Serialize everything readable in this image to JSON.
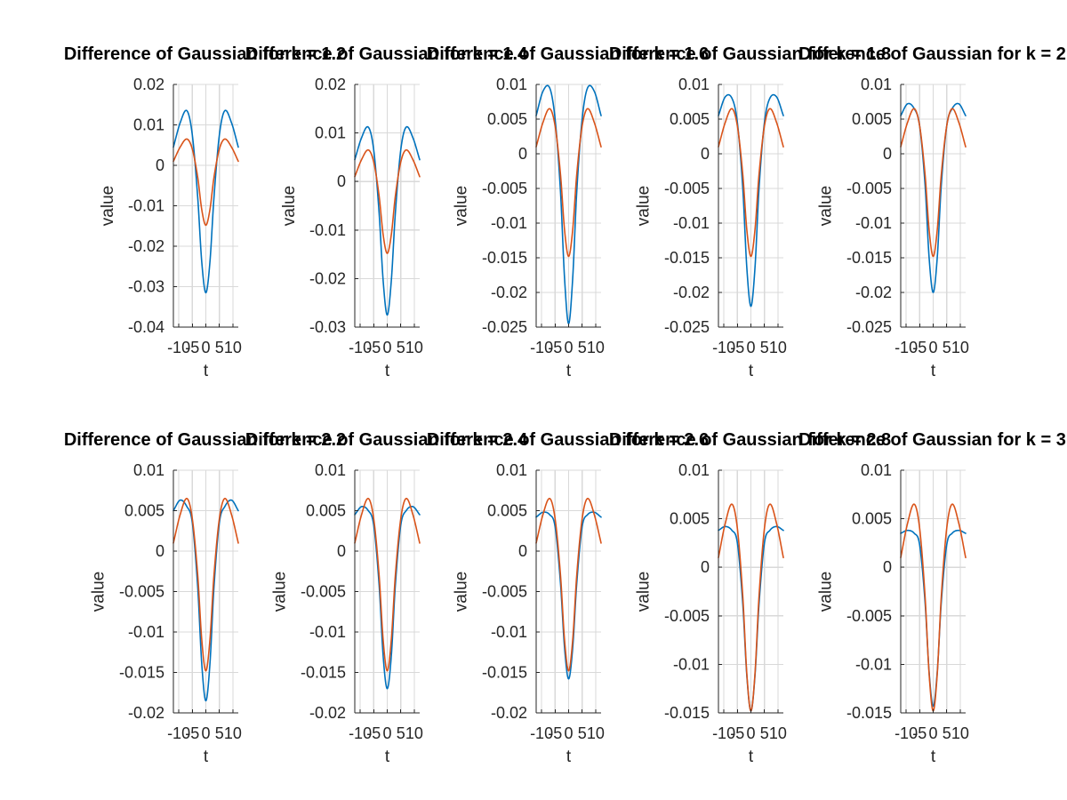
{
  "colors": {
    "dog": "#0072bd",
    "log": "#d95319"
  },
  "chart_data": [
    {
      "type": "line",
      "title": "Difference of Gaussian for k = 1.2",
      "xlabel": "t",
      "ylabel": "value",
      "k": 1.2,
      "xlim": [
        -12,
        12
      ],
      "ylim": [
        -0.04,
        0.02
      ],
      "xticks": [
        -10,
        -5,
        0,
        5,
        10
      ],
      "xtick_labels": [
        "-10",
        "-5",
        "0",
        "5",
        "10"
      ],
      "yticks": [
        -0.04,
        -0.03,
        -0.02,
        -0.01,
        0,
        0.01,
        0.02
      ],
      "ytick_labels": [
        "-0.04",
        "-0.03",
        "-0.02",
        "-0.01",
        "0",
        "0.01",
        "0.02"
      ],
      "grid": true,
      "series": [
        {
          "color": "#0072bd",
          "x": [
            -12,
            -9.5,
            -7,
            -5,
            -3,
            -1.5,
            0,
            1.5,
            3,
            5,
            7,
            9.5,
            12
          ],
          "y": [
            0.0045,
            0.0105,
            0.0135,
            0.0075,
            -0.008,
            -0.024,
            -0.0315,
            -0.024,
            -0.008,
            0.0075,
            0.0135,
            0.0105,
            0.0045
          ]
        },
        {
          "color": "#d95319",
          "x": [
            -12,
            -9.5,
            -7,
            -5,
            -3,
            -1.5,
            0,
            1.5,
            3,
            5,
            7,
            9.5,
            12
          ],
          "y": [
            0.001,
            0.0045,
            0.0065,
            0.004,
            -0.003,
            -0.011,
            -0.0148,
            -0.011,
            -0.003,
            0.004,
            0.0065,
            0.0045,
            0.001
          ]
        }
      ]
    },
    {
      "type": "line",
      "title": "Difference of Gaussian for k = 1.4",
      "xlabel": "t",
      "ylabel": "value",
      "k": 1.4,
      "xlim": [
        -12,
        12
      ],
      "ylim": [
        -0.03,
        0.02
      ],
      "xticks": [
        -10,
        -5,
        0,
        5,
        10
      ],
      "xtick_labels": [
        "-10",
        "-5",
        "0",
        "5",
        "10"
      ],
      "yticks": [
        -0.03,
        -0.02,
        -0.01,
        0,
        0.01,
        0.02
      ],
      "ytick_labels": [
        "-0.03",
        "-0.02",
        "-0.01",
        "0",
        "0.01",
        "0.02"
      ],
      "grid": true,
      "series": [
        {
          "color": "#0072bd",
          "x": [
            -12,
            -9.5,
            -7,
            -5,
            -3,
            -1.5,
            0,
            1.5,
            3,
            5,
            7,
            9.5,
            12
          ],
          "y": [
            0.0045,
            0.009,
            0.0112,
            0.0065,
            -0.0065,
            -0.0205,
            -0.0275,
            -0.0205,
            -0.0065,
            0.0065,
            0.0112,
            0.009,
            0.0045
          ]
        },
        {
          "color": "#d95319",
          "x": [
            -12,
            -9.5,
            -7,
            -5,
            -3,
            -1.5,
            0,
            1.5,
            3,
            5,
            7,
            9.5,
            12
          ],
          "y": [
            0.001,
            0.0045,
            0.0065,
            0.004,
            -0.003,
            -0.011,
            -0.0148,
            -0.011,
            -0.003,
            0.004,
            0.0065,
            0.0045,
            0.001
          ]
        }
      ]
    },
    {
      "type": "line",
      "title": "Difference of Gaussian for k = 1.6",
      "xlabel": "t",
      "ylabel": "value",
      "k": 1.6,
      "xlim": [
        -12,
        12
      ],
      "ylim": [
        -0.025,
        0.01
      ],
      "xticks": [
        -10,
        -5,
        0,
        5,
        10
      ],
      "xtick_labels": [
        "-10",
        "-5",
        "0",
        "5",
        "10"
      ],
      "yticks": [
        -0.025,
        -0.02,
        -0.015,
        -0.01,
        -0.005,
        0,
        0.005,
        0.01
      ],
      "ytick_labels": [
        "-0.025",
        "-0.02",
        "-0.015",
        "-0.01",
        "-0.005",
        "0",
        "0.005",
        "0.01"
      ],
      "grid": true,
      "series": [
        {
          "color": "#0072bd",
          "x": [
            -12,
            -9.5,
            -7,
            -5,
            -3,
            -1.5,
            0,
            1.5,
            3,
            5,
            7,
            9.5,
            12
          ],
          "y": [
            0.0055,
            0.009,
            0.0095,
            0.005,
            -0.0055,
            -0.018,
            -0.0245,
            -0.018,
            -0.0055,
            0.005,
            0.0095,
            0.009,
            0.0055
          ]
        },
        {
          "color": "#d95319",
          "x": [
            -12,
            -9.5,
            -7,
            -5,
            -3,
            -1.5,
            0,
            1.5,
            3,
            5,
            7,
            9.5,
            12
          ],
          "y": [
            0.001,
            0.0045,
            0.0065,
            0.004,
            -0.003,
            -0.011,
            -0.0148,
            -0.011,
            -0.003,
            0.004,
            0.0065,
            0.0045,
            0.001
          ]
        }
      ]
    },
    {
      "type": "line",
      "title": "Difference of Gaussian for k = 1.8",
      "xlabel": "t",
      "ylabel": "value",
      "k": 1.8,
      "xlim": [
        -12,
        12
      ],
      "ylim": [
        -0.025,
        0.01
      ],
      "xticks": [
        -10,
        -5,
        0,
        5,
        10
      ],
      "xtick_labels": [
        "-10",
        "-5",
        "0",
        "5",
        "10"
      ],
      "yticks": [
        -0.025,
        -0.02,
        -0.015,
        -0.01,
        -0.005,
        0,
        0.005,
        0.01
      ],
      "ytick_labels": [
        "-0.025",
        "-0.02",
        "-0.015",
        "-0.01",
        "-0.005",
        "0",
        "0.005",
        "0.01"
      ],
      "grid": true,
      "series": [
        {
          "color": "#0072bd",
          "x": [
            -12,
            -9.5,
            -7,
            -5,
            -3,
            -1.5,
            0,
            1.5,
            3,
            5,
            7,
            9.5,
            12
          ],
          "y": [
            0.0055,
            0.0082,
            0.008,
            0.0045,
            -0.005,
            -0.0165,
            -0.022,
            -0.0165,
            -0.005,
            0.0045,
            0.008,
            0.0082,
            0.0055
          ]
        },
        {
          "color": "#d95319",
          "x": [
            -12,
            -9.5,
            -7,
            -5,
            -3,
            -1.5,
            0,
            1.5,
            3,
            5,
            7,
            9.5,
            12
          ],
          "y": [
            0.001,
            0.0045,
            0.0065,
            0.004,
            -0.003,
            -0.011,
            -0.0148,
            -0.011,
            -0.003,
            0.004,
            0.0065,
            0.0045,
            0.001
          ]
        }
      ]
    },
    {
      "type": "line",
      "title": "Difference of Gaussian for k = 2",
      "xlabel": "t",
      "ylabel": "value",
      "k": 2,
      "xlim": [
        -12,
        12
      ],
      "ylim": [
        -0.025,
        0.01
      ],
      "xticks": [
        -10,
        -5,
        0,
        5,
        10
      ],
      "xtick_labels": [
        "-10",
        "-5",
        "0",
        "5",
        "10"
      ],
      "yticks": [
        -0.025,
        -0.02,
        -0.015,
        -0.01,
        -0.005,
        0,
        0.005,
        0.01
      ],
      "ytick_labels": [
        "-0.025",
        "-0.02",
        "-0.015",
        "-0.01",
        "-0.005",
        "0",
        "0.005",
        "0.01"
      ],
      "grid": true,
      "series": [
        {
          "color": "#0072bd",
          "x": [
            -12,
            -9.5,
            -7,
            -5,
            -3,
            -1.5,
            0,
            1.5,
            3,
            5,
            7,
            9.5,
            12
          ],
          "y": [
            0.0055,
            0.0072,
            0.0065,
            0.004,
            -0.0045,
            -0.015,
            -0.02,
            -0.015,
            -0.0045,
            0.004,
            0.0065,
            0.0072,
            0.0055
          ]
        },
        {
          "color": "#d95319",
          "x": [
            -12,
            -9.5,
            -7,
            -5,
            -3,
            -1.5,
            0,
            1.5,
            3,
            5,
            7,
            9.5,
            12
          ],
          "y": [
            0.001,
            0.0045,
            0.0065,
            0.004,
            -0.003,
            -0.011,
            -0.0148,
            -0.011,
            -0.003,
            0.004,
            0.0065,
            0.0045,
            0.001
          ]
        }
      ]
    },
    {
      "type": "line",
      "title": "Difference of Gaussian for k = 2.2",
      "xlabel": "t",
      "ylabel": "value",
      "k": 2.2,
      "xlim": [
        -12,
        12
      ],
      "ylim": [
        -0.02,
        0.01
      ],
      "xticks": [
        -10,
        -5,
        0,
        5,
        10
      ],
      "xtick_labels": [
        "-10",
        "-5",
        "0",
        "5",
        "10"
      ],
      "yticks": [
        -0.02,
        -0.015,
        -0.01,
        -0.005,
        0,
        0.005,
        0.01
      ],
      "ytick_labels": [
        "-0.02",
        "-0.015",
        "-0.01",
        "-0.005",
        "0",
        "0.005",
        "0.01"
      ],
      "grid": true,
      "series": [
        {
          "color": "#0072bd",
          "x": [
            -12,
            -9.5,
            -7,
            -5,
            -3,
            -1.5,
            0,
            1.5,
            3,
            5,
            7,
            9.5,
            12
          ],
          "y": [
            0.005,
            0.0063,
            0.0055,
            0.0035,
            -0.0045,
            -0.014,
            -0.0185,
            -0.014,
            -0.0045,
            0.0035,
            0.0055,
            0.0063,
            0.005
          ]
        },
        {
          "color": "#d95319",
          "x": [
            -12,
            -9.5,
            -7,
            -5,
            -3,
            -1.5,
            0,
            1.5,
            3,
            5,
            7,
            9.5,
            12
          ],
          "y": [
            0.001,
            0.0045,
            0.0065,
            0.004,
            -0.003,
            -0.011,
            -0.0148,
            -0.011,
            -0.003,
            0.004,
            0.0065,
            0.0045,
            0.001
          ]
        }
      ]
    },
    {
      "type": "line",
      "title": "Difference of Gaussian for k = 2.4",
      "xlabel": "t",
      "ylabel": "value",
      "k": 2.4,
      "xlim": [
        -12,
        12
      ],
      "ylim": [
        -0.02,
        0.01
      ],
      "xticks": [
        -10,
        -5,
        0,
        5,
        10
      ],
      "xtick_labels": [
        "-10",
        "-5",
        "0",
        "5",
        "10"
      ],
      "yticks": [
        -0.02,
        -0.015,
        -0.01,
        -0.005,
        0,
        0.005,
        0.01
      ],
      "ytick_labels": [
        "-0.02",
        "-0.015",
        "-0.01",
        "-0.005",
        "0",
        "0.005",
        "0.01"
      ],
      "grid": true,
      "series": [
        {
          "color": "#0072bd",
          "x": [
            -12,
            -9.5,
            -7,
            -5,
            -3,
            -1.5,
            0,
            1.5,
            3,
            5,
            7,
            9.5,
            12
          ],
          "y": [
            0.0045,
            0.0055,
            0.005,
            0.0032,
            -0.0042,
            -0.013,
            -0.017,
            -0.013,
            -0.0042,
            0.0032,
            0.005,
            0.0055,
            0.0045
          ]
        },
        {
          "color": "#d95319",
          "x": [
            -12,
            -9.5,
            -7,
            -5,
            -3,
            -1.5,
            0,
            1.5,
            3,
            5,
            7,
            9.5,
            12
          ],
          "y": [
            0.001,
            0.0045,
            0.0065,
            0.004,
            -0.003,
            -0.011,
            -0.0148,
            -0.011,
            -0.003,
            0.004,
            0.0065,
            0.0045,
            0.001
          ]
        }
      ]
    },
    {
      "type": "line",
      "title": "Difference of Gaussian for k = 2.6",
      "xlabel": "t",
      "ylabel": "value",
      "k": 2.6,
      "xlim": [
        -12,
        12
      ],
      "ylim": [
        -0.02,
        0.01
      ],
      "xticks": [
        -10,
        -5,
        0,
        5,
        10
      ],
      "xtick_labels": [
        "-10",
        "-5",
        "0",
        "5",
        "10"
      ],
      "yticks": [
        -0.02,
        -0.015,
        -0.01,
        -0.005,
        0,
        0.005,
        0.01
      ],
      "ytick_labels": [
        "-0.02",
        "-0.015",
        "-0.01",
        "-0.005",
        "0",
        "0.005",
        "0.01"
      ],
      "grid": true,
      "series": [
        {
          "color": "#0072bd",
          "x": [
            -12,
            -9.5,
            -7,
            -5,
            -3,
            -1.5,
            0,
            1.5,
            3,
            5,
            7,
            9.5,
            12
          ],
          "y": [
            0.0042,
            0.0048,
            0.0045,
            0.003,
            -0.004,
            -0.012,
            -0.0158,
            -0.012,
            -0.004,
            0.003,
            0.0045,
            0.0048,
            0.0042
          ]
        },
        {
          "color": "#d95319",
          "x": [
            -12,
            -9.5,
            -7,
            -5,
            -3,
            -1.5,
            0,
            1.5,
            3,
            5,
            7,
            9.5,
            12
          ],
          "y": [
            0.001,
            0.0045,
            0.0065,
            0.004,
            -0.003,
            -0.011,
            -0.0148,
            -0.011,
            -0.003,
            0.004,
            0.0065,
            0.0045,
            0.001
          ]
        }
      ]
    },
    {
      "type": "line",
      "title": "Difference of Gaussian for k = 2.8",
      "xlabel": "t",
      "ylabel": "value",
      "k": 2.8,
      "xlim": [
        -12,
        12
      ],
      "ylim": [
        -0.015,
        0.01
      ],
      "xticks": [
        -10,
        -5,
        0,
        5,
        10
      ],
      "xtick_labels": [
        "-10",
        "-5",
        "0",
        "5",
        "10"
      ],
      "yticks": [
        -0.015,
        -0.01,
        -0.005,
        0,
        0.005,
        0.01
      ],
      "ytick_labels": [
        "-0.015",
        "-0.01",
        "-0.005",
        "0",
        "0.005",
        "0.01"
      ],
      "grid": true,
      "series": [
        {
          "color": "#0072bd",
          "x": [
            -12,
            -9.5,
            -7,
            -5,
            -3,
            -1.5,
            0,
            1.5,
            3,
            5,
            7,
            9.5,
            12
          ],
          "y": [
            0.0038,
            0.0042,
            0.0038,
            0.0025,
            -0.0038,
            -0.0112,
            -0.0148,
            -0.0112,
            -0.0038,
            0.0025,
            0.0038,
            0.0042,
            0.0038
          ]
        },
        {
          "color": "#d95319",
          "x": [
            -12,
            -9.5,
            -7,
            -5,
            -3,
            -1.5,
            0,
            1.5,
            3,
            5,
            7,
            9.5,
            12
          ],
          "y": [
            0.001,
            0.0045,
            0.0065,
            0.004,
            -0.003,
            -0.011,
            -0.0148,
            -0.011,
            -0.003,
            0.004,
            0.0065,
            0.0045,
            0.001
          ]
        }
      ]
    },
    {
      "type": "line",
      "title": "Difference of Gaussian for k = 3",
      "xlabel": "t",
      "ylabel": "value",
      "k": 3,
      "xlim": [
        -12,
        12
      ],
      "ylim": [
        -0.015,
        0.01
      ],
      "xticks": [
        -10,
        -5,
        0,
        5,
        10
      ],
      "xtick_labels": [
        "-10",
        "-5",
        "0",
        "5",
        "10"
      ],
      "yticks": [
        -0.015,
        -0.01,
        -0.005,
        0,
        0.005,
        0.01
      ],
      "ytick_labels": [
        "-0.015",
        "-0.01",
        "-0.005",
        "0",
        "0.005",
        "0.01"
      ],
      "grid": true,
      "series": [
        {
          "color": "#0072bd",
          "x": [
            -12,
            -9.5,
            -7,
            -5,
            -3,
            -1.5,
            0,
            1.5,
            3,
            5,
            7,
            9.5,
            12
          ],
          "y": [
            0.0035,
            0.0038,
            0.0035,
            0.0023,
            -0.0036,
            -0.0108,
            -0.0143,
            -0.0108,
            -0.0036,
            0.0023,
            0.0035,
            0.0038,
            0.0035
          ]
        },
        {
          "color": "#d95319",
          "x": [
            -12,
            -9.5,
            -7,
            -5,
            -3,
            -1.5,
            0,
            1.5,
            3,
            5,
            7,
            9.5,
            12
          ],
          "y": [
            0.001,
            0.0045,
            0.0065,
            0.004,
            -0.003,
            -0.011,
            -0.0148,
            -0.011,
            -0.003,
            0.004,
            0.0065,
            0.0045,
            0.001
          ]
        }
      ]
    }
  ]
}
